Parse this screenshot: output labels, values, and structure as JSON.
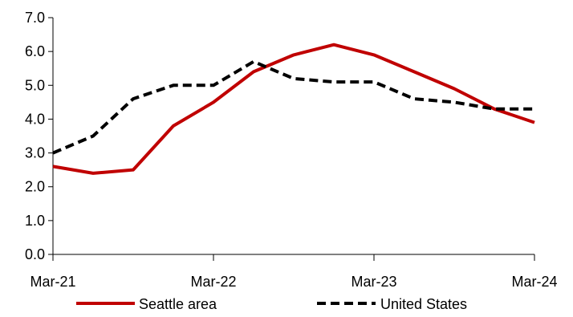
{
  "chart_data": {
    "type": "line",
    "title": "",
    "xlabel": "",
    "ylabel": "",
    "ylim": [
      0,
      7
    ],
    "yticks": [
      "0.0",
      "1.0",
      "2.0",
      "3.0",
      "4.0",
      "5.0",
      "6.0",
      "7.0"
    ],
    "xlim": [
      0,
      12
    ],
    "xticks": [
      {
        "x": 0,
        "label": "Mar-21"
      },
      {
        "x": 4,
        "label": "Mar-22"
      },
      {
        "x": 8,
        "label": "Mar-23"
      },
      {
        "x": 12,
        "label": "Mar-24"
      }
    ],
    "grid": false,
    "legend_position": "bottom",
    "series": [
      {
        "name": "Seattle area",
        "color": "#c00000",
        "style": "solid",
        "x": [
          0,
          1,
          2,
          3,
          4,
          5,
          6,
          7,
          8,
          9,
          10,
          11,
          12
        ],
        "values": [
          2.6,
          2.4,
          2.5,
          3.8,
          4.5,
          5.4,
          5.9,
          6.2,
          5.9,
          5.4,
          4.9,
          4.3,
          3.9
        ]
      },
      {
        "name": "United States",
        "color": "#000000",
        "style": "dashed",
        "x": [
          0,
          1,
          2,
          3,
          4,
          5,
          6,
          7,
          8,
          9,
          10,
          11,
          12
        ],
        "values": [
          3.0,
          3.5,
          4.6,
          5.0,
          5.0,
          5.7,
          5.2,
          5.1,
          5.1,
          4.6,
          4.5,
          4.3,
          4.3
        ]
      }
    ]
  }
}
